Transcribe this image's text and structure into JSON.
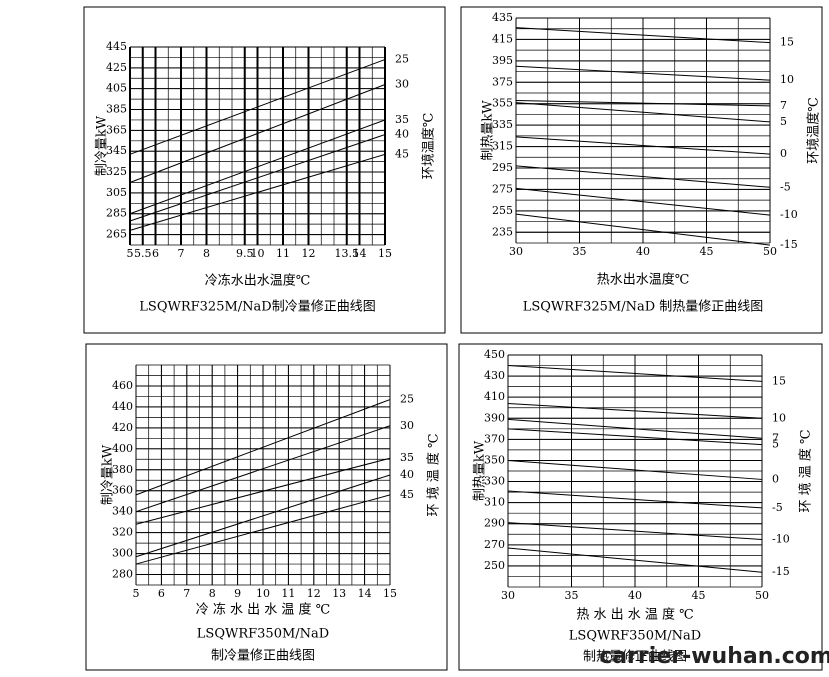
{
  "chart_data": [
    {
      "type": "line",
      "title": "LSQWRF325M/NaD制冷量修正曲线图",
      "x_label": "冷冻水出水温度℃",
      "y_label": "制冷量kW",
      "y2_label": "环境温度℃",
      "xlim": [
        5,
        15
      ],
      "ylim": [
        255,
        445
      ],
      "xticks": [
        5,
        5.5,
        6,
        7,
        8,
        9.5,
        10,
        11,
        12,
        13.5,
        14,
        15
      ],
      "yticks": [
        265,
        285,
        305,
        325,
        345,
        365,
        385,
        405,
        425,
        445
      ],
      "grid": true,
      "color": "#000000",
      "series": [
        {
          "name": "25",
          "x": [
            5,
            15
          ],
          "values": [
            342,
            433
          ]
        },
        {
          "name": "30",
          "x": [
            5,
            15
          ],
          "values": [
            315,
            409
          ]
        },
        {
          "name": "35",
          "x": [
            5,
            15
          ],
          "values": [
            285,
            375
          ]
        },
        {
          "name": "40",
          "x": [
            5,
            15
          ],
          "values": [
            278,
            361
          ]
        },
        {
          "name": "45",
          "x": [
            5,
            15
          ],
          "values": [
            269,
            342
          ]
        }
      ]
    },
    {
      "type": "line",
      "title": "LSQWRF325M/NaD 制热量修正曲线图",
      "x_label": "热水出水温度℃",
      "y_label": "制热量kW",
      "y2_label": "环境温度℃",
      "xlim": [
        30,
        50
      ],
      "ylim": [
        225,
        435
      ],
      "xticks": [
        30,
        35,
        40,
        45,
        50
      ],
      "yticks": [
        235,
        255,
        275,
        295,
        315,
        335,
        355,
        375,
        395,
        415,
        435
      ],
      "grid": true,
      "color": "#000000",
      "series": [
        {
          "name": "15",
          "x": [
            30,
            50
          ],
          "values": [
            426,
            412
          ]
        },
        {
          "name": "10",
          "x": [
            30,
            50
          ],
          "values": [
            390,
            377
          ]
        },
        {
          "name": "7",
          "x": [
            30,
            50
          ],
          "values": [
            358,
            353
          ]
        },
        {
          "name": "5",
          "x": [
            30,
            50
          ],
          "values": [
            356,
            338
          ]
        },
        {
          "name": "0",
          "x": [
            30,
            50
          ],
          "values": [
            324,
            308
          ]
        },
        {
          "name": "-5",
          "x": [
            30,
            50
          ],
          "values": [
            297,
            277
          ]
        },
        {
          "name": "-10",
          "x": [
            30,
            50
          ],
          "values": [
            276,
            251
          ]
        },
        {
          "name": "-15",
          "x": [
            30,
            50
          ],
          "values": [
            252,
            223
          ]
        }
      ]
    },
    {
      "type": "line",
      "title": "LSQWRF350M/NaD",
      "subtitle": "制冷量修正曲线图",
      "x_label": "冷 冻 水 出 水 温 度 ℃",
      "y_label": "制冷量kW",
      "y2_label": "环 境 温 度 ℃",
      "xlim": [
        5,
        15
      ],
      "ylim": [
        270,
        480
      ],
      "xticks": [
        5,
        6,
        7,
        8,
        9,
        10,
        11,
        12,
        13,
        14,
        15
      ],
      "yticks": [
        280,
        300,
        320,
        340,
        360,
        380,
        400,
        420,
        440,
        460
      ],
      "grid": true,
      "color": "#000000",
      "series": [
        {
          "name": "25",
          "x": [
            5,
            15
          ],
          "values": [
            356,
            447
          ]
        },
        {
          "name": "30",
          "x": [
            5,
            15
          ],
          "values": [
            340,
            422
          ]
        },
        {
          "name": "35",
          "x": [
            5,
            15
          ],
          "values": [
            328,
            391
          ]
        },
        {
          "name": "40",
          "x": [
            5,
            15
          ],
          "values": [
            297,
            375
          ]
        },
        {
          "name": "45",
          "x": [
            5,
            15
          ],
          "values": [
            290,
            356
          ]
        }
      ]
    },
    {
      "type": "line",
      "title": "LSQWRF350M/NaD",
      "subtitle": "制热量修正曲线图",
      "x_label": "热 水 出 水 温 度 ℃",
      "y_label": "制热量kW",
      "y2_label": "环 境 温 度 ℃",
      "xlim": [
        30,
        50
      ],
      "ylim": [
        230,
        450
      ],
      "xticks": [
        30,
        35,
        40,
        45,
        50
      ],
      "yticks": [
        250,
        270,
        290,
        310,
        330,
        350,
        370,
        390,
        410,
        430,
        450
      ],
      "grid": true,
      "color": "#000000",
      "series": [
        {
          "name": "15",
          "x": [
            30,
            50
          ],
          "values": [
            440,
            425
          ]
        },
        {
          "name": "10",
          "x": [
            30,
            50
          ],
          "values": [
            404,
            390
          ]
        },
        {
          "name": "7",
          "x": [
            30,
            50
          ],
          "values": [
            389,
            371
          ]
        },
        {
          "name": "5",
          "x": [
            30,
            50
          ],
          "values": [
            380,
            365
          ]
        },
        {
          "name": "0",
          "x": [
            30,
            50
          ],
          "values": [
            350,
            332
          ]
        },
        {
          "name": "-5",
          "x": [
            30,
            50
          ],
          "values": [
            321,
            305
          ]
        },
        {
          "name": "-10",
          "x": [
            30,
            50
          ],
          "values": [
            291,
            275
          ]
        },
        {
          "name": "-15",
          "x": [
            30,
            50
          ],
          "values": [
            267,
            244
          ]
        }
      ]
    }
  ],
  "watermark": "carrier-wuhan.com"
}
